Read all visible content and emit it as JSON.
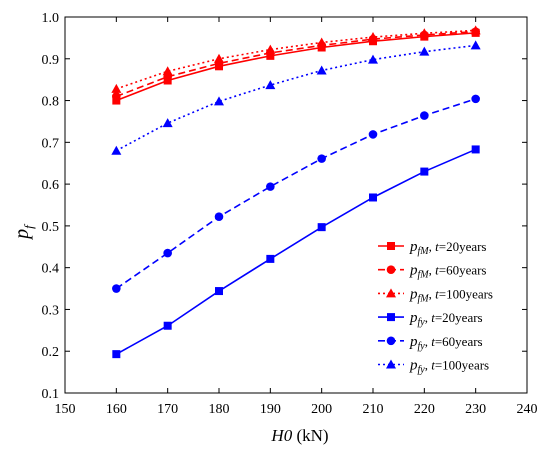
{
  "chart_data": {
    "type": "line",
    "xlabel": {
      "main": "H0",
      "unit": " (kN)"
    },
    "ylabel": {
      "main": "p",
      "sub": "f"
    },
    "xlim": [
      150,
      240
    ],
    "ylim": [
      0.1,
      1.0
    ],
    "xticks": [
      150,
      160,
      170,
      180,
      190,
      200,
      210,
      220,
      230,
      240
    ],
    "yticks": [
      0.1,
      0.2,
      0.3,
      0.4,
      0.5,
      0.6,
      0.7,
      0.8,
      0.9,
      1.0
    ],
    "xtick_labels": [
      "150",
      "160",
      "170",
      "180",
      "190",
      "200",
      "210",
      "220",
      "230",
      "240"
    ],
    "ytick_labels": [
      "0.1",
      "0.2",
      "0.3",
      "0.4",
      "0.5",
      "0.6",
      "0.7",
      "0.8",
      "0.9",
      "1.0"
    ],
    "grid": false,
    "legend_position": "bottom-right",
    "x": [
      160,
      170,
      180,
      190,
      200,
      210,
      220,
      230
    ],
    "series": [
      {
        "name": {
          "p": "p",
          "sub": "fM",
          "rest": ", ",
          "t": "t",
          "eq": "=20years"
        },
        "color": "#ff0000",
        "dash": "solid",
        "marker": "square",
        "values": [
          0.8,
          0.848,
          0.882,
          0.907,
          0.927,
          0.942,
          0.953,
          0.962
        ]
      },
      {
        "name": {
          "p": "p",
          "sub": "fM",
          "rest": ", ",
          "t": "t",
          "eq": "=60years"
        },
        "color": "#ff0000",
        "dash": "dashed",
        "marker": "circle",
        "values": [
          0.81,
          0.857,
          0.889,
          0.914,
          0.932,
          0.947,
          0.957,
          0.965
        ]
      },
      {
        "name": {
          "p": "p",
          "sub": "fM",
          "rest": ", ",
          "t": "t",
          "eq": "=100years"
        },
        "color": "#ff0000",
        "dash": "dotted",
        "marker": "triangle",
        "values": [
          0.828,
          0.87,
          0.9,
          0.922,
          0.939,
          0.952,
          0.961,
          0.968
        ]
      },
      {
        "name": {
          "p": "p",
          "sub": "fy",
          "rest": ", ",
          "t": "t",
          "eq": "=20years"
        },
        "color": "#0000ff",
        "dash": "solid",
        "marker": "square",
        "values": [
          0.193,
          0.261,
          0.344,
          0.421,
          0.497,
          0.568,
          0.63,
          0.683
        ]
      },
      {
        "name": {
          "p": "p",
          "sub": "fy",
          "rest": ", ",
          "t": "t",
          "eq": "=60years"
        },
        "color": "#0000ff",
        "dash": "dashed",
        "marker": "circle",
        "values": [
          0.35,
          0.435,
          0.522,
          0.594,
          0.661,
          0.719,
          0.764,
          0.804
        ]
      },
      {
        "name": {
          "p": "p",
          "sub": "fy",
          "rest": ", ",
          "t": "t",
          "eq": "=100years"
        },
        "color": "#0000ff",
        "dash": "dotted",
        "marker": "triangle",
        "values": [
          0.68,
          0.746,
          0.798,
          0.837,
          0.872,
          0.898,
          0.917,
          0.932
        ]
      }
    ]
  }
}
